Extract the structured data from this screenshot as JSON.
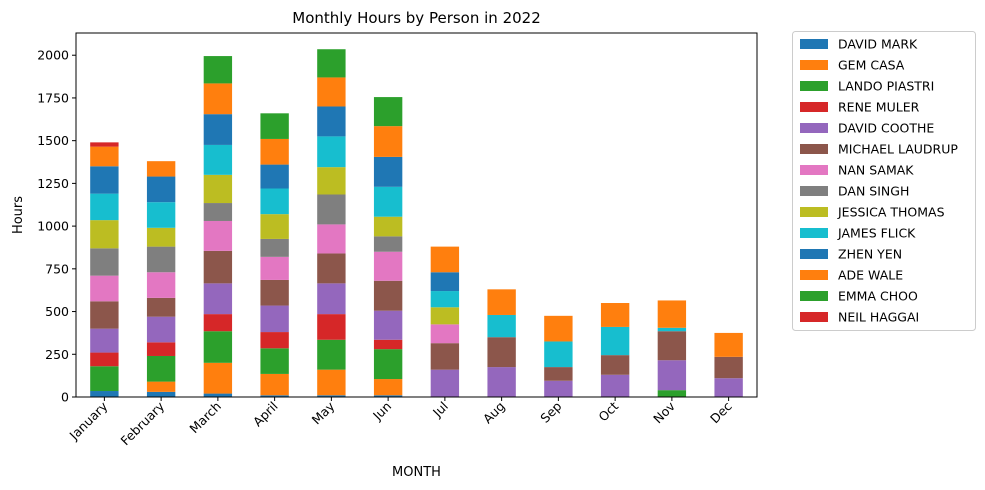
{
  "chart_data": {
    "type": "bar",
    "stacked": true,
    "title": "Monthly Hours by Person in 2022",
    "xlabel": "MONTH",
    "ylabel": "Hours",
    "ylim": [
      0,
      2130
    ],
    "yticks": [
      0,
      250,
      500,
      750,
      1000,
      1250,
      1500,
      1750,
      2000
    ],
    "grid": false,
    "legend_position": "outside-right",
    "categories": [
      "January",
      "February",
      "March",
      "April",
      "May",
      "Jun",
      "Jul",
      "Aug",
      "Sep",
      "Oct",
      "Nov",
      "Dec"
    ],
    "series": [
      {
        "name": "DAVID MARK",
        "color": "#1f77b4",
        "values": [
          35,
          30,
          20,
          10,
          10,
          10,
          0,
          0,
          0,
          0,
          0,
          0
        ]
      },
      {
        "name": "GEM CASA",
        "color": "#ff7f0e",
        "values": [
          0,
          60,
          180,
          125,
          150,
          95,
          0,
          0,
          0,
          0,
          0,
          0
        ]
      },
      {
        "name": "LANDO PIASTRI",
        "color": "#2ca02c",
        "values": [
          145,
          150,
          185,
          150,
          175,
          175,
          0,
          0,
          0,
          0,
          40,
          0
        ]
      },
      {
        "name": "RENE MULER",
        "color": "#d62728",
        "values": [
          80,
          80,
          100,
          95,
          150,
          55,
          0,
          0,
          0,
          0,
          0,
          0
        ]
      },
      {
        "name": "DAVID COOTHE",
        "color": "#9467bd",
        "values": [
          140,
          150,
          180,
          155,
          180,
          170,
          160,
          175,
          95,
          130,
          175,
          110
        ]
      },
      {
        "name": "MICHAEL LAUDRUP",
        "color": "#8c564b",
        "values": [
          160,
          110,
          190,
          150,
          175,
          175,
          155,
          175,
          80,
          115,
          170,
          125
        ]
      },
      {
        "name": "NAN SAMAK",
        "color": "#e377c2",
        "values": [
          150,
          150,
          175,
          135,
          170,
          170,
          110,
          0,
          0,
          0,
          0,
          0
        ]
      },
      {
        "name": "DAN SINGH",
        "color": "#7f7f7f",
        "values": [
          160,
          150,
          105,
          105,
          175,
          90,
          0,
          0,
          0,
          0,
          0,
          0
        ]
      },
      {
        "name": "JESSICA THOMAS",
        "color": "#bcbd22",
        "values": [
          165,
          110,
          165,
          145,
          160,
          115,
          100,
          0,
          0,
          0,
          0,
          0
        ]
      },
      {
        "name": "JAMES FLICK",
        "color": "#17becf",
        "values": [
          155,
          150,
          175,
          150,
          180,
          175,
          95,
          130,
          150,
          165,
          20,
          0
        ]
      },
      {
        "name": "ZHEN YEN",
        "color": "#1f77b4",
        "values": [
          160,
          150,
          180,
          140,
          175,
          175,
          110,
          0,
          0,
          0,
          0,
          0
        ]
      },
      {
        "name": "ADE WALE",
        "color": "#ff7f0e",
        "values": [
          115,
          90,
          180,
          150,
          170,
          180,
          150,
          150,
          150,
          140,
          160,
          140
        ]
      },
      {
        "name": "EMMA CHOO",
        "color": "#2ca02c",
        "values": [
          0,
          0,
          160,
          150,
          165,
          170,
          0,
          0,
          0,
          0,
          0,
          0
        ]
      },
      {
        "name": "NEIL HAGGAI",
        "color": "#d62728",
        "values": [
          25,
          0,
          0,
          0,
          0,
          0,
          0,
          0,
          0,
          0,
          0,
          0
        ]
      }
    ]
  }
}
